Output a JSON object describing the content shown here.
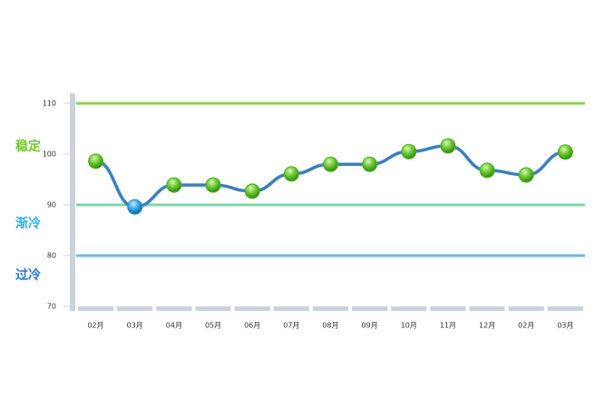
{
  "chart_data": {
    "type": "line",
    "categories": [
      "02月",
      "03月",
      "04月",
      "05月",
      "06月",
      "07月",
      "08月",
      "09月",
      "10月",
      "11月",
      "12月",
      "02月",
      "03月"
    ],
    "series": [
      {
        "color": "#3a7fc0",
        "values": [
          98.6,
          89.6,
          93.9,
          93.9,
          92.7,
          96.1,
          98.0,
          98.0,
          100.5,
          101.6,
          96.8,
          95.9,
          100.4
        ],
        "point_colors": [
          "#4caf1e",
          "#1f8fd0",
          "#4caf1e",
          "#4caf1e",
          "#4caf1e",
          "#4caf1e",
          "#4caf1e",
          "#4caf1e",
          "#4caf1e",
          "#4caf1e",
          "#4caf1e",
          "#4caf1e",
          "#4caf1e"
        ]
      }
    ],
    "ylim": [
      70,
      110
    ],
    "yticks": [
      70,
      80,
      90,
      100,
      110
    ],
    "reference_lines": [
      {
        "value": 110,
        "color": "#8fd24a"
      },
      {
        "value": 90,
        "color": "#7fd6a8"
      },
      {
        "value": 80,
        "color": "#6cb8e8"
      }
    ],
    "annotations": [
      {
        "text": "稳定",
        "color": "#6cc832"
      },
      {
        "text": "渐冷",
        "color": "#2fb0e0"
      },
      {
        "text": "过冷",
        "color": "#2a78c8"
      }
    ]
  }
}
